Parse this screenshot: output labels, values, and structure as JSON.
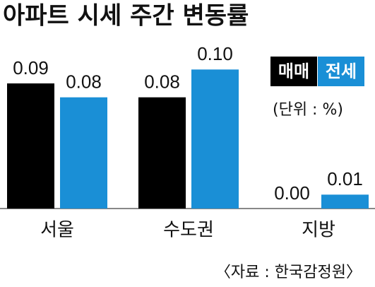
{
  "chart_data": {
    "type": "bar",
    "title": "아파트 시세 주간 변동률",
    "unit_note": "(단위 : %)",
    "source": "〈자료 : 한국감정원〉",
    "categories": [
      "서울",
      "수도권",
      "지방"
    ],
    "series": [
      {
        "name": "매매",
        "color": "#000000",
        "values": [
          0.09,
          0.08,
          0.0
        ],
        "value_labels": [
          "0.09",
          "0.08",
          "0.00"
        ]
      },
      {
        "name": "전세",
        "color": "#1a8fd6",
        "values": [
          0.08,
          0.1,
          0.01
        ],
        "value_labels": [
          "0.08",
          "0.10",
          "0.01"
        ]
      }
    ],
    "ylim": [
      0,
      0.12
    ]
  }
}
